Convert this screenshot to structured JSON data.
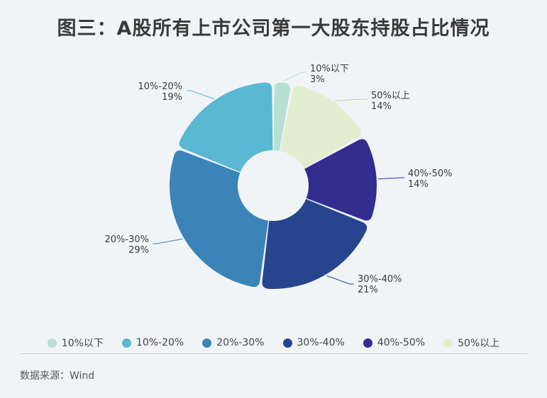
{
  "title": "图三：A股所有上市公司第一大股东持股占比情况",
  "source": "数据来源：Wind",
  "chart_data": {
    "type": "pie",
    "donut": true,
    "title": "图三：A股所有上市公司第一大股东持股占比情况",
    "legend_position": "bottom",
    "slices": [
      {
        "name": "10%以下",
        "value": 3,
        "label": "3%",
        "color": "#b6e0d0"
      },
      {
        "name": "50%以上",
        "value": 14,
        "label": "14%",
        "color": "#e1efd0"
      },
      {
        "name": "40%-50%",
        "value": 14,
        "label": "14%",
        "color": "#332d8f"
      },
      {
        "name": "30%-40%",
        "value": 21,
        "label": "21%",
        "color": "#27448f"
      },
      {
        "name": "20%-30%",
        "value": 29,
        "label": "29%",
        "color": "#3a84b8"
      },
      {
        "name": "10%-20%",
        "value": 19,
        "label": "19%",
        "color": "#5ab8d3"
      }
    ],
    "legend_order": [
      "10%以下",
      "10%-20%",
      "20%-30%",
      "30%-40%",
      "40%-50%",
      "50%以上"
    ]
  }
}
